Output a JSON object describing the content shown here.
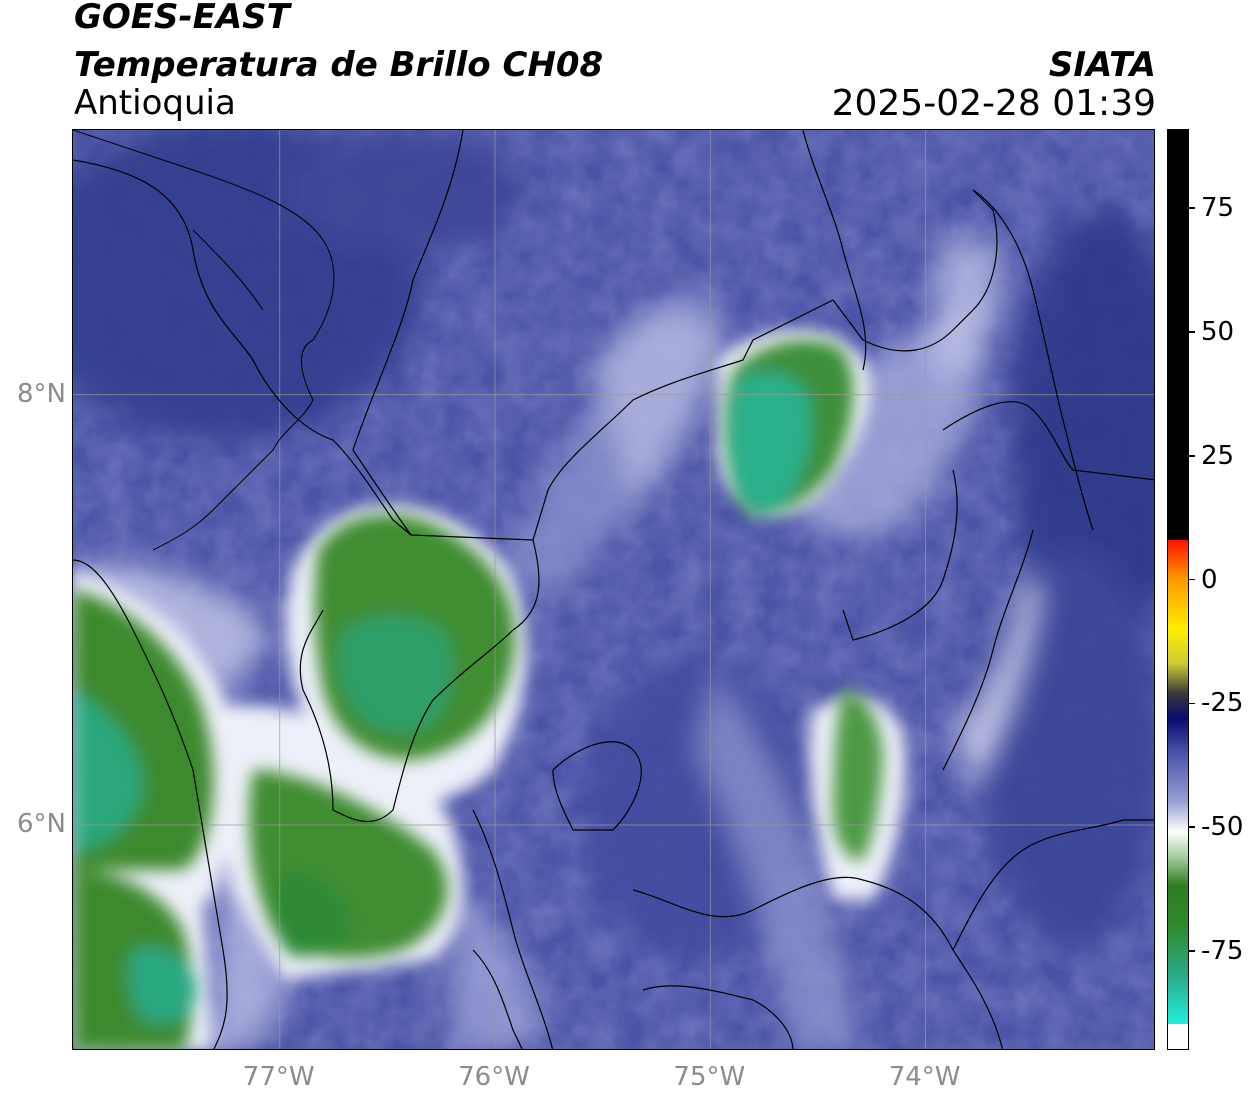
{
  "header": {
    "satellite": "GOES-EAST",
    "product": "Temperatura de Brillo CH08",
    "region": "Antioquia",
    "agency": "SIATA",
    "timestamp": "2025-02-28 01:39"
  },
  "map": {
    "lon_range": [
      -77.96,
      -72.93
    ],
    "lat_range": [
      4.95,
      9.23
    ],
    "lon_ticks": [
      {
        "value": -77,
        "label": "77°W"
      },
      {
        "value": -76,
        "label": "76°W"
      },
      {
        "value": -75,
        "label": "75°W"
      },
      {
        "value": -74,
        "label": "74°W"
      }
    ],
    "lat_ticks": [
      {
        "value": 8,
        "label": "8°N"
      },
      {
        "value": 6,
        "label": "6°N"
      }
    ],
    "grid": true,
    "colors": {
      "background_cold": "#3a4596",
      "background_mid": "#5a62b0",
      "light": "#c8cbe6",
      "white": "#f4f5fb",
      "green": "#3d8a2e",
      "teal": "#2bb58c",
      "borders": "#000000",
      "grid": "#9a9a9a"
    }
  },
  "colorbar": {
    "label_unit": "",
    "range": [
      -95,
      91
    ],
    "ticks": [
      {
        "value": 75,
        "label": "75"
      },
      {
        "value": 50,
        "label": "50"
      },
      {
        "value": 25,
        "label": "25"
      },
      {
        "value": 0,
        "label": "0"
      },
      {
        "value": -25,
        "label": "-25"
      },
      {
        "value": -50,
        "label": "-50"
      },
      {
        "value": -75,
        "label": "-75"
      }
    ],
    "stops": [
      {
        "value": -95,
        "color": "#ffffff"
      },
      {
        "value": -90,
        "color": "#ffffff"
      },
      {
        "value": -89.9,
        "color": "#22eedd"
      },
      {
        "value": -80,
        "color": "#2aaa88"
      },
      {
        "value": -70,
        "color": "#2f8a2c"
      },
      {
        "value": -62,
        "color": "#2f7d22"
      },
      {
        "value": -56,
        "color": "#a8cfa0"
      },
      {
        "value": -51,
        "color": "#ffffff"
      },
      {
        "value": -45,
        "color": "#9aa0d4"
      },
      {
        "value": -35,
        "color": "#4a52a8"
      },
      {
        "value": -28,
        "color": "#0a0a6e"
      },
      {
        "value": -23,
        "color": "#3a3a3a"
      },
      {
        "value": -17,
        "color": "#cccc33"
      },
      {
        "value": -10,
        "color": "#ffee00"
      },
      {
        "value": 0,
        "color": "#ff9900"
      },
      {
        "value": 8,
        "color": "#ff1100"
      },
      {
        "value": 8.1,
        "color": "#000000"
      },
      {
        "value": 91,
        "color": "#000000"
      }
    ]
  }
}
